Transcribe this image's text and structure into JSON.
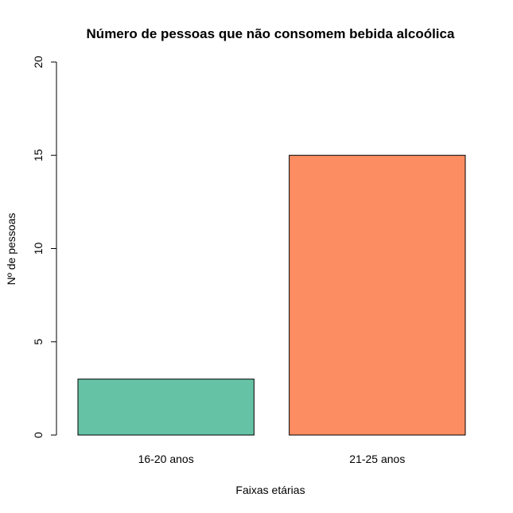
{
  "chart_data": {
    "type": "bar",
    "title": "Número de pessoas que não consomem bebida alcoólica",
    "xlabel": "Faixas etárias",
    "ylabel": "Nº de pessoas",
    "categories": [
      "16-20 anos",
      "21-25 anos"
    ],
    "values": [
      3,
      15
    ],
    "colors": [
      "#66c2a5",
      "#fc8d62"
    ],
    "ylim": [
      0,
      20
    ],
    "yticks": [
      "0",
      "5",
      "10",
      "15",
      "20"
    ],
    "grid": false,
    "legend": "none"
  }
}
